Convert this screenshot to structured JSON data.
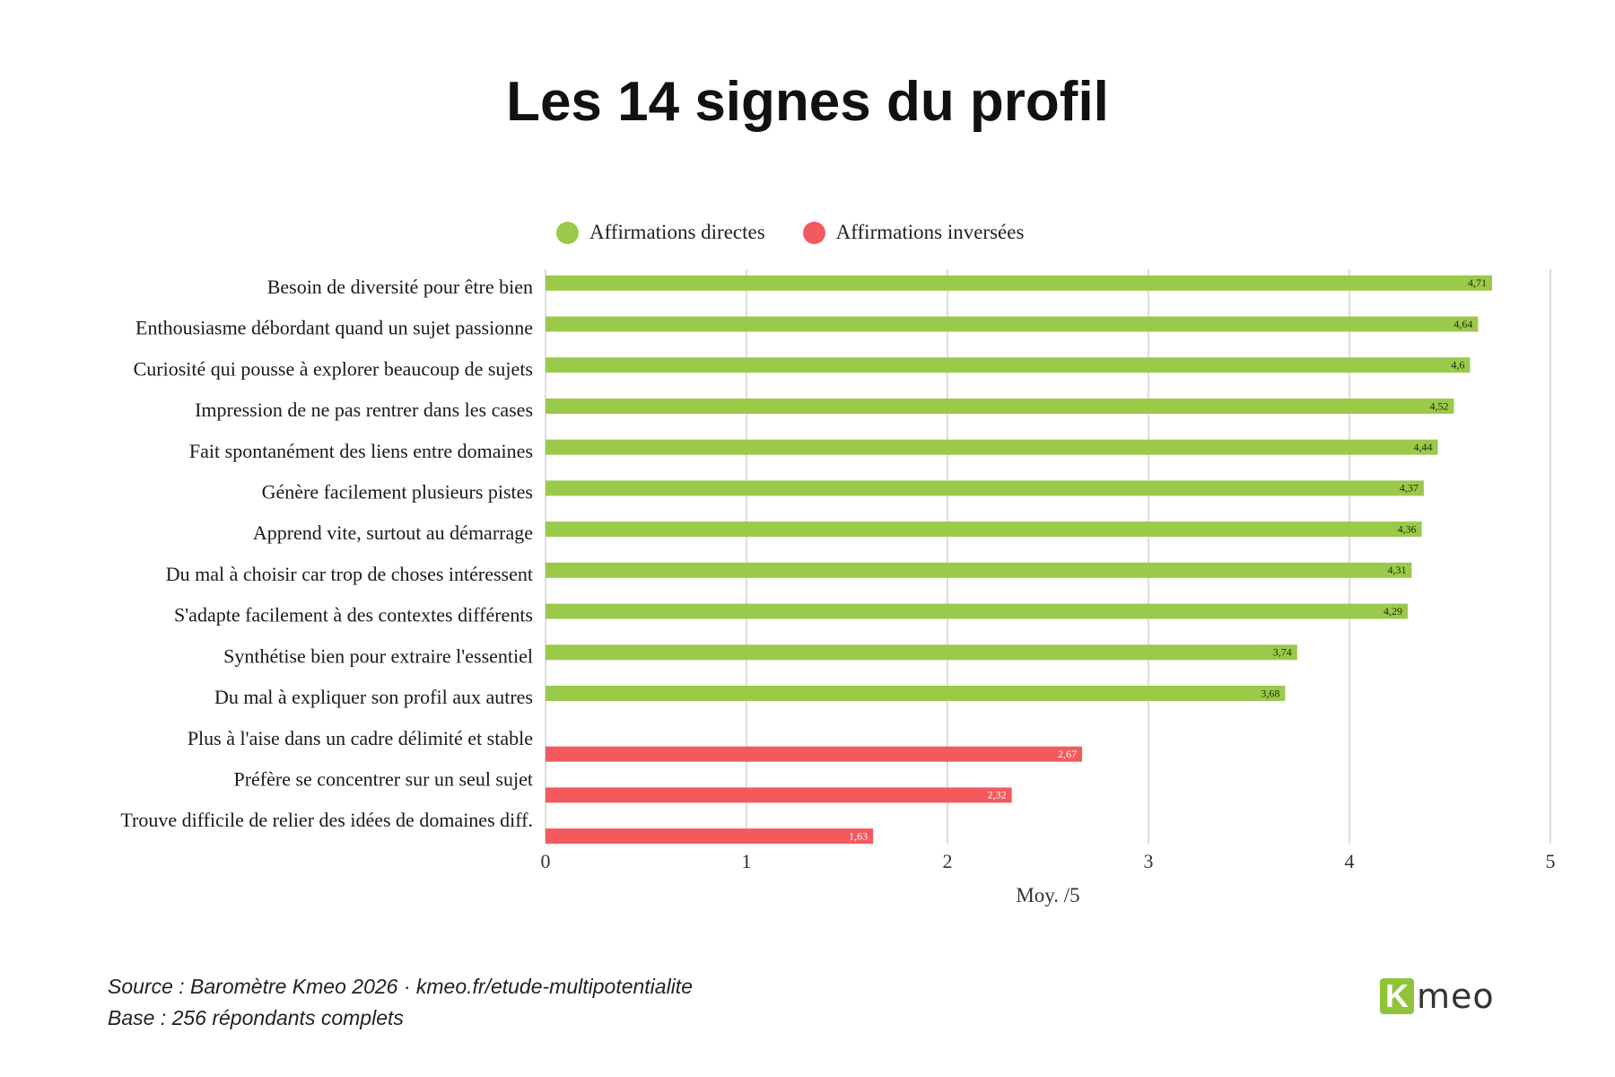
{
  "title": "Les 14 signes du profil",
  "legend": [
    {
      "label": "Affirmations directes",
      "color": "#9bc94a"
    },
    {
      "label": "Affirmations inversées",
      "color": "#f25a5e"
    }
  ],
  "chart_data": {
    "type": "bar",
    "orientation": "horizontal",
    "xlabel": "Moy. /5",
    "xlim": [
      0,
      5
    ],
    "xticks": [
      "0",
      "1",
      "2",
      "3",
      "4",
      "5"
    ],
    "grid": true,
    "legend_position": "top-center",
    "series": [
      {
        "name": "Affirmations directes",
        "color": "#9bc94a"
      },
      {
        "name": "Affirmations inversées",
        "color": "#f25a5e"
      }
    ],
    "bars": [
      {
        "label": "Besoin de diversité pour être bien",
        "value": 4.71,
        "value_label": "4,71",
        "series": 0
      },
      {
        "label": "Enthousiasme débordant quand un sujet passionne",
        "value": 4.64,
        "value_label": "4,64",
        "series": 0
      },
      {
        "label": "Curiosité qui pousse à explorer beaucoup de sujets",
        "value": 4.6,
        "value_label": "4,6",
        "series": 0
      },
      {
        "label": "Impression de ne pas rentrer dans les cases",
        "value": 4.52,
        "value_label": "4,52",
        "series": 0
      },
      {
        "label": "Fait spontanément des liens entre domaines",
        "value": 4.44,
        "value_label": "4,44",
        "series": 0
      },
      {
        "label": "Génère facilement plusieurs pistes",
        "value": 4.37,
        "value_label": "4,37",
        "series": 0
      },
      {
        "label": "Apprend vite, surtout au démarrage",
        "value": 4.36,
        "value_label": "4,36",
        "series": 0
      },
      {
        "label": "Du mal à choisir car trop de choses intéressent",
        "value": 4.31,
        "value_label": "4,31",
        "series": 0
      },
      {
        "label": "S'adapte facilement à des contextes différents",
        "value": 4.29,
        "value_label": "4,29",
        "series": 0
      },
      {
        "label": "Synthétise bien pour extraire l'essentiel",
        "value": 3.74,
        "value_label": "3,74",
        "series": 0
      },
      {
        "label": "Du mal à expliquer son profil aux autres",
        "value": 3.68,
        "value_label": "3,68",
        "series": 0
      },
      {
        "label": "Plus à l'aise dans un cadre délimité et stable",
        "value": 2.67,
        "value_label": "2,67",
        "series": 1
      },
      {
        "label": "Préfère se concentrer sur un seul sujet",
        "value": 2.32,
        "value_label": "2,32",
        "series": 1
      },
      {
        "label": "Trouve difficile de relier des idées de domaines diff.",
        "value": 1.63,
        "value_label": "1,63",
        "series": 1
      }
    ]
  },
  "footer": {
    "source": "Source : Baromètre Kmeo 2026 · kmeo.fr/etude-multipotentialite",
    "base": "Base : 256 répondants complets"
  },
  "logo": {
    "k": "K",
    "rest": "meo"
  }
}
